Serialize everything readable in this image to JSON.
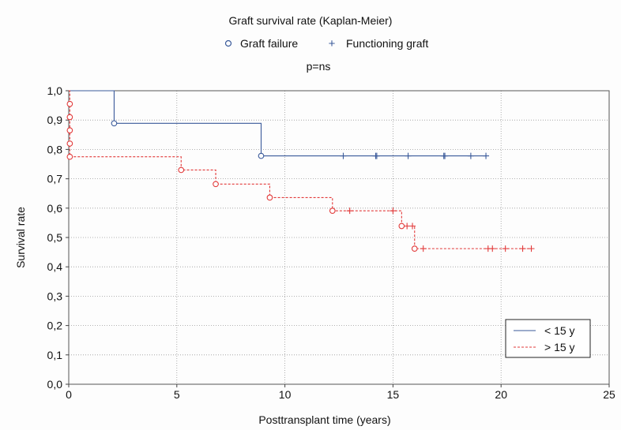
{
  "chart_data": {
    "type": "line",
    "title": "Graft survival rate (Kaplan-Meier)",
    "subtitle": "p=ns",
    "xlabel": "Posttransplant time (years)",
    "ylabel": "Survival rate",
    "xlim": [
      0,
      25
    ],
    "ylim": [
      0,
      1
    ],
    "x_ticks": [
      0,
      5,
      10,
      15,
      20,
      25
    ],
    "x_tick_labels": [
      "0",
      "5",
      "10",
      "15",
      "20",
      "25"
    ],
    "y_ticks": [
      0,
      0.1,
      0.2,
      0.3,
      0.4,
      0.5,
      0.6,
      0.7,
      0.8,
      0.9,
      1.0
    ],
    "y_tick_labels": [
      "0,0",
      "0,1",
      "0,2",
      "0,3",
      "0,4",
      "0,5",
      "0,6",
      "0,7",
      "0,8",
      "0,9",
      "1,0"
    ],
    "grid": true,
    "marker_legend": {
      "failure_label": "Graft failure",
      "failure_symbol": "○",
      "censored_label": "Functioning graft",
      "censored_symbol": "+",
      "color": "#3a5a9a"
    },
    "series_legend_position": "bottom-right",
    "series": [
      {
        "name": "< 15 y",
        "color": "#3a5a9a",
        "dashed": false,
        "steps": [
          [
            0,
            1.0
          ],
          [
            2.1,
            0.889
          ],
          [
            8.9,
            0.778
          ],
          [
            19.3,
            0.778
          ]
        ],
        "failures": [
          [
            2.1,
            0.889
          ],
          [
            8.9,
            0.778
          ]
        ],
        "censored": [
          [
            12.7,
            0.778
          ],
          [
            14.2,
            0.778
          ],
          [
            14.25,
            0.778
          ],
          [
            15.7,
            0.778
          ],
          [
            17.35,
            0.778
          ],
          [
            17.4,
            0.778
          ],
          [
            18.6,
            0.778
          ],
          [
            19.3,
            0.778
          ]
        ]
      },
      {
        "name": "> 15 y",
        "color": "#e23a3a",
        "dashed": true,
        "steps": [
          [
            0,
            1.0
          ],
          [
            0.05,
            0.955
          ],
          [
            0.05,
            0.91
          ],
          [
            0.05,
            0.865
          ],
          [
            0.05,
            0.82
          ],
          [
            0.05,
            0.775
          ],
          [
            5.2,
            0.73
          ],
          [
            6.8,
            0.682
          ],
          [
            9.3,
            0.636
          ],
          [
            12.2,
            0.591
          ],
          [
            15.4,
            0.539
          ],
          [
            16.0,
            0.462
          ],
          [
            21.4,
            0.462
          ]
        ],
        "failures": [
          [
            0.05,
            0.955
          ],
          [
            0.05,
            0.91
          ],
          [
            0.05,
            0.865
          ],
          [
            0.05,
            0.82
          ],
          [
            0.05,
            0.775
          ],
          [
            5.2,
            0.73
          ],
          [
            6.8,
            0.682
          ],
          [
            9.3,
            0.636
          ],
          [
            12.2,
            0.591
          ],
          [
            15.4,
            0.539
          ],
          [
            16.0,
            0.462
          ]
        ],
        "censored": [
          [
            13.0,
            0.591
          ],
          [
            15.0,
            0.591
          ],
          [
            15.65,
            0.539
          ],
          [
            15.9,
            0.539
          ],
          [
            16.4,
            0.462
          ],
          [
            19.4,
            0.462
          ],
          [
            19.6,
            0.462
          ],
          [
            20.2,
            0.462
          ],
          [
            21.0,
            0.462
          ],
          [
            21.4,
            0.462
          ]
        ]
      }
    ]
  }
}
